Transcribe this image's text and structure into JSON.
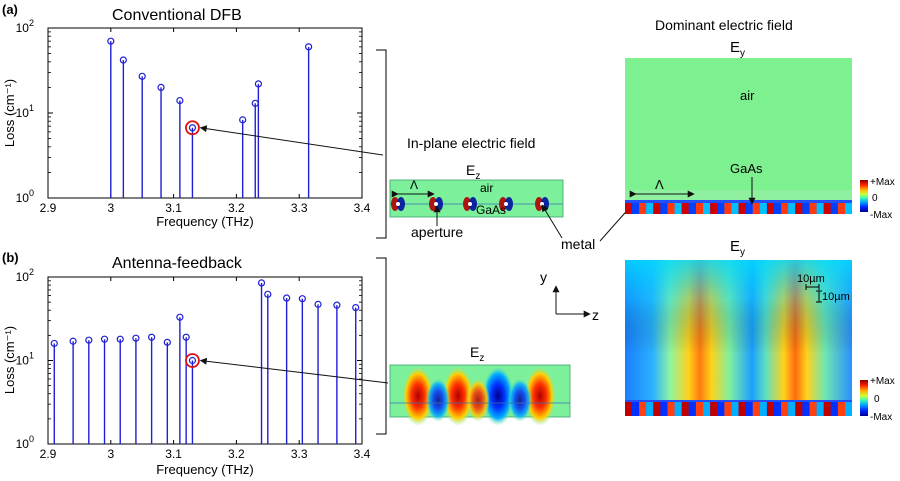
{
  "labels": {
    "panel_a": "(a)",
    "panel_b": "(b)",
    "title_a": "Conventional DFB",
    "title_b": "Antenna-feedback",
    "inplane_title": "In-plane electric field",
    "dominant_title": "Dominant electric field",
    "ez_a": "E",
    "ez_a_sub": "z",
    "ez_b": "E",
    "ez_b_sub": "z",
    "ey_a": "E",
    "ey_a_sub": "y",
    "ey_b": "E",
    "ey_b_sub": "y",
    "air_small": "air",
    "gaas_small": "GaAs",
    "lambda_small": "Λ",
    "aperture": "aperture",
    "metal": "metal",
    "air_big": "air",
    "gaas_big": "GaAs",
    "lambda_big": "Λ",
    "scale_h": "10µm",
    "scale_v": "10µm",
    "axis_y": "y",
    "axis_z": "z",
    "cbar_a_max": "+Max",
    "cbar_a_zero": "0",
    "cbar_a_min": "-Max",
    "cbar_b_max": "+Max",
    "cbar_b_zero": "0",
    "cbar_b_min": "-Max"
  },
  "colors": {
    "stem": "#1f1fd6",
    "highlight": "#e01010"
  },
  "chart_data": [
    {
      "type": "scatter",
      "title": "Conventional DFB",
      "xlabel": "Frequency (THz)",
      "ylabel": "Loss (cm⁻¹)",
      "xlim": [
        2.9,
        3.4
      ],
      "ylim": [
        1,
        100
      ],
      "yscale": "log",
      "xticks": [
        "2.9",
        "3",
        "3.1",
        "3.2",
        "3.3",
        "3.4"
      ],
      "grid": false,
      "x": [
        3.0,
        3.02,
        3.05,
        3.08,
        3.11,
        3.13,
        3.21,
        3.23,
        3.235,
        3.315
      ],
      "y": [
        70,
        42,
        27,
        20,
        14,
        6.7,
        8.3,
        13,
        22,
        60
      ],
      "highlight_index": 5
    },
    {
      "type": "scatter",
      "title": "Antenna-feedback",
      "xlabel": "Frequency (THz)",
      "ylabel": "Loss (cm⁻¹)",
      "xlim": [
        2.9,
        3.4
      ],
      "ylim": [
        1,
        100
      ],
      "yscale": "log",
      "xticks": [
        "2.9",
        "3",
        "3.1",
        "3.2",
        "3.3",
        "3.4"
      ],
      "grid": false,
      "x": [
        2.91,
        2.94,
        2.965,
        2.99,
        3.015,
        3.04,
        3.065,
        3.09,
        3.11,
        3.12,
        3.13,
        3.24,
        3.25,
        3.28,
        3.305,
        3.33,
        3.36,
        3.39
      ],
      "y": [
        16,
        17,
        17.5,
        18,
        18,
        18.5,
        19,
        16.5,
        33,
        19,
        10,
        85,
        62,
        56,
        55,
        47,
        46,
        43
      ],
      "highlight_index": 10
    }
  ]
}
